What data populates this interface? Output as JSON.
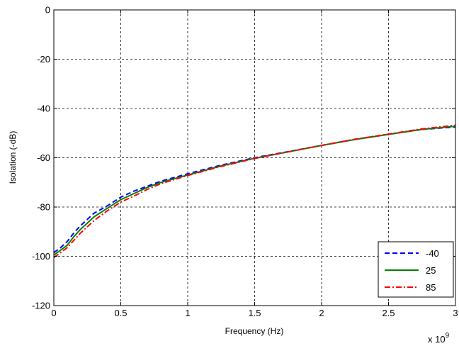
{
  "chart_data": {
    "type": "line",
    "xlabel": "Frequency (Hz)",
    "ylabel": "Isolation (-dB)",
    "x_exponent_label": "x 10",
    "x_exponent_power": "9",
    "xlim": [
      0,
      3
    ],
    "ylim": [
      -120,
      0
    ],
    "x_ticks": [
      0,
      0.5,
      1,
      1.5,
      2,
      2.5,
      3
    ],
    "x_tick_labels": [
      "0",
      "0.5",
      "1",
      "1.5",
      "2",
      "2.5",
      "3"
    ],
    "y_ticks": [
      0,
      -20,
      -40,
      -60,
      -80,
      -100,
      -120
    ],
    "y_tick_labels": [
      "0",
      "-20",
      "-40",
      "-60",
      "-80",
      "-100",
      "-120"
    ],
    "grid": true,
    "legend_position": "bottom-right",
    "x": [
      0,
      0.05,
      0.1,
      0.15,
      0.2,
      0.25,
      0.3,
      0.4,
      0.5,
      0.6,
      0.7,
      0.8,
      1.0,
      1.25,
      1.5,
      1.75,
      2.0,
      2.25,
      2.5,
      2.75,
      3.0
    ],
    "series": [
      {
        "name": "-40",
        "color": "#0000ff",
        "style": "dashed",
        "values": [
          -98.5,
          -96.5,
          -94,
          -90.5,
          -87.5,
          -85,
          -82.5,
          -79.5,
          -76,
          -73.5,
          -71.5,
          -69.5,
          -66.5,
          -63,
          -60,
          -57.5,
          -55,
          -52.5,
          -50.5,
          -48.5,
          -47.5
        ]
      },
      {
        "name": "25",
        "color": "#008000",
        "style": "solid",
        "values": [
          -99.5,
          -97.5,
          -95.5,
          -92,
          -89,
          -86.5,
          -84,
          -80.5,
          -77,
          -74.5,
          -72,
          -70,
          -67,
          -63.3,
          -60.2,
          -57.6,
          -55,
          -52.6,
          -50.5,
          -48.5,
          -47.2
        ]
      },
      {
        "name": "85",
        "color": "#ff0000",
        "style": "dashdot",
        "values": [
          -100.5,
          -98.5,
          -96.5,
          -93.5,
          -90.5,
          -88,
          -85.5,
          -81.5,
          -78,
          -75.5,
          -72.8,
          -70.5,
          -67.2,
          -63.5,
          -60.3,
          -57.6,
          -55,
          -52.5,
          -50.4,
          -48.3,
          -46.8
        ]
      }
    ]
  }
}
